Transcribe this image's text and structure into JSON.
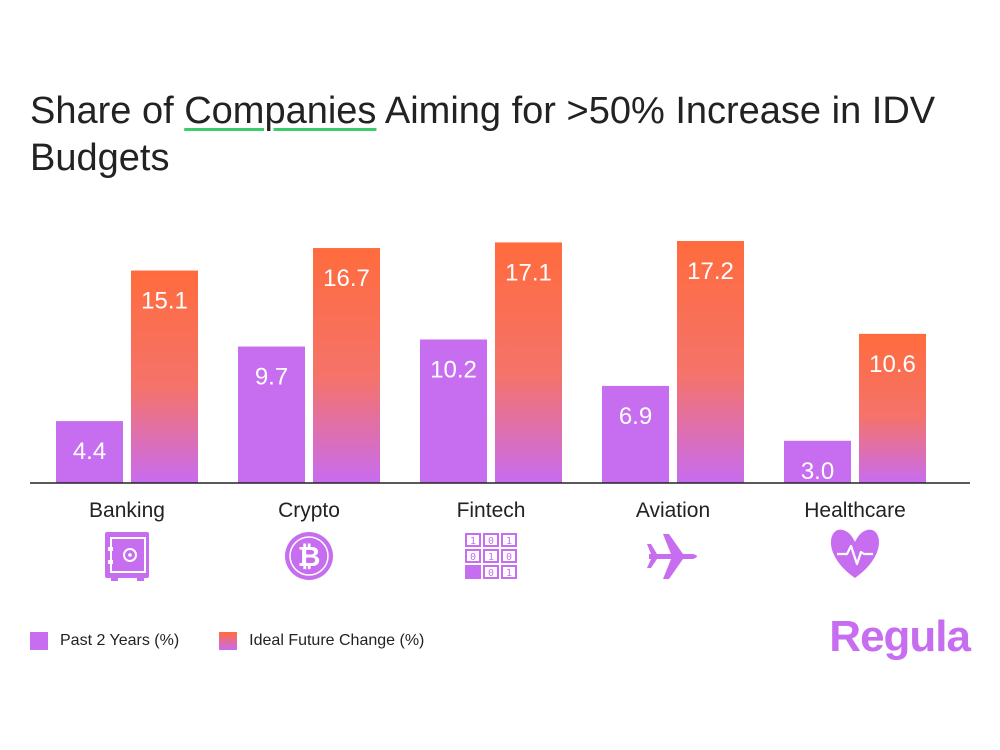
{
  "title": {
    "part1": "Share of ",
    "highlight1": "Companies",
    "part2": " Aiming for >50% Increase in IDV Budgets"
  },
  "colors": {
    "past": "#c76ef0",
    "future_top": "#ff6b3d",
    "future_bottom": "#c86cf0",
    "icon": "#c76ef0",
    "brand": "#c76ef0",
    "highlight": "#3ecc6b"
  },
  "chart_data": {
    "type": "bar",
    "title": "Share of Companies Aiming for >50% Increase in IDV Budgets",
    "categories": [
      "Banking",
      "Crypto",
      "Fintech",
      "Aviation",
      "Healthcare"
    ],
    "icons": [
      "safe-icon",
      "bitcoin-icon",
      "binary-icon",
      "airplane-icon",
      "heart-pulse-icon"
    ],
    "series": [
      {
        "name": "Past 2 Years (%)",
        "values": [
          4.4,
          9.7,
          10.2,
          6.9,
          3.0
        ]
      },
      {
        "name": "Ideal Future Change (%)",
        "values": [
          15.1,
          16.7,
          17.1,
          17.2,
          10.6
        ]
      }
    ],
    "value_labels": [
      [
        "4.4",
        "9.7",
        "10.2",
        "6.9",
        "3.0"
      ],
      [
        "15.1",
        "16.7",
        "17.1",
        "17.2",
        "10.6"
      ]
    ],
    "ylim": [
      0,
      17.2
    ],
    "grid": false,
    "legend_position": "bottom-left"
  },
  "legend": {
    "past_label": "Past 2 Years (%)",
    "future_label": "Ideal Future Change (%)"
  },
  "brand": "Regula"
}
